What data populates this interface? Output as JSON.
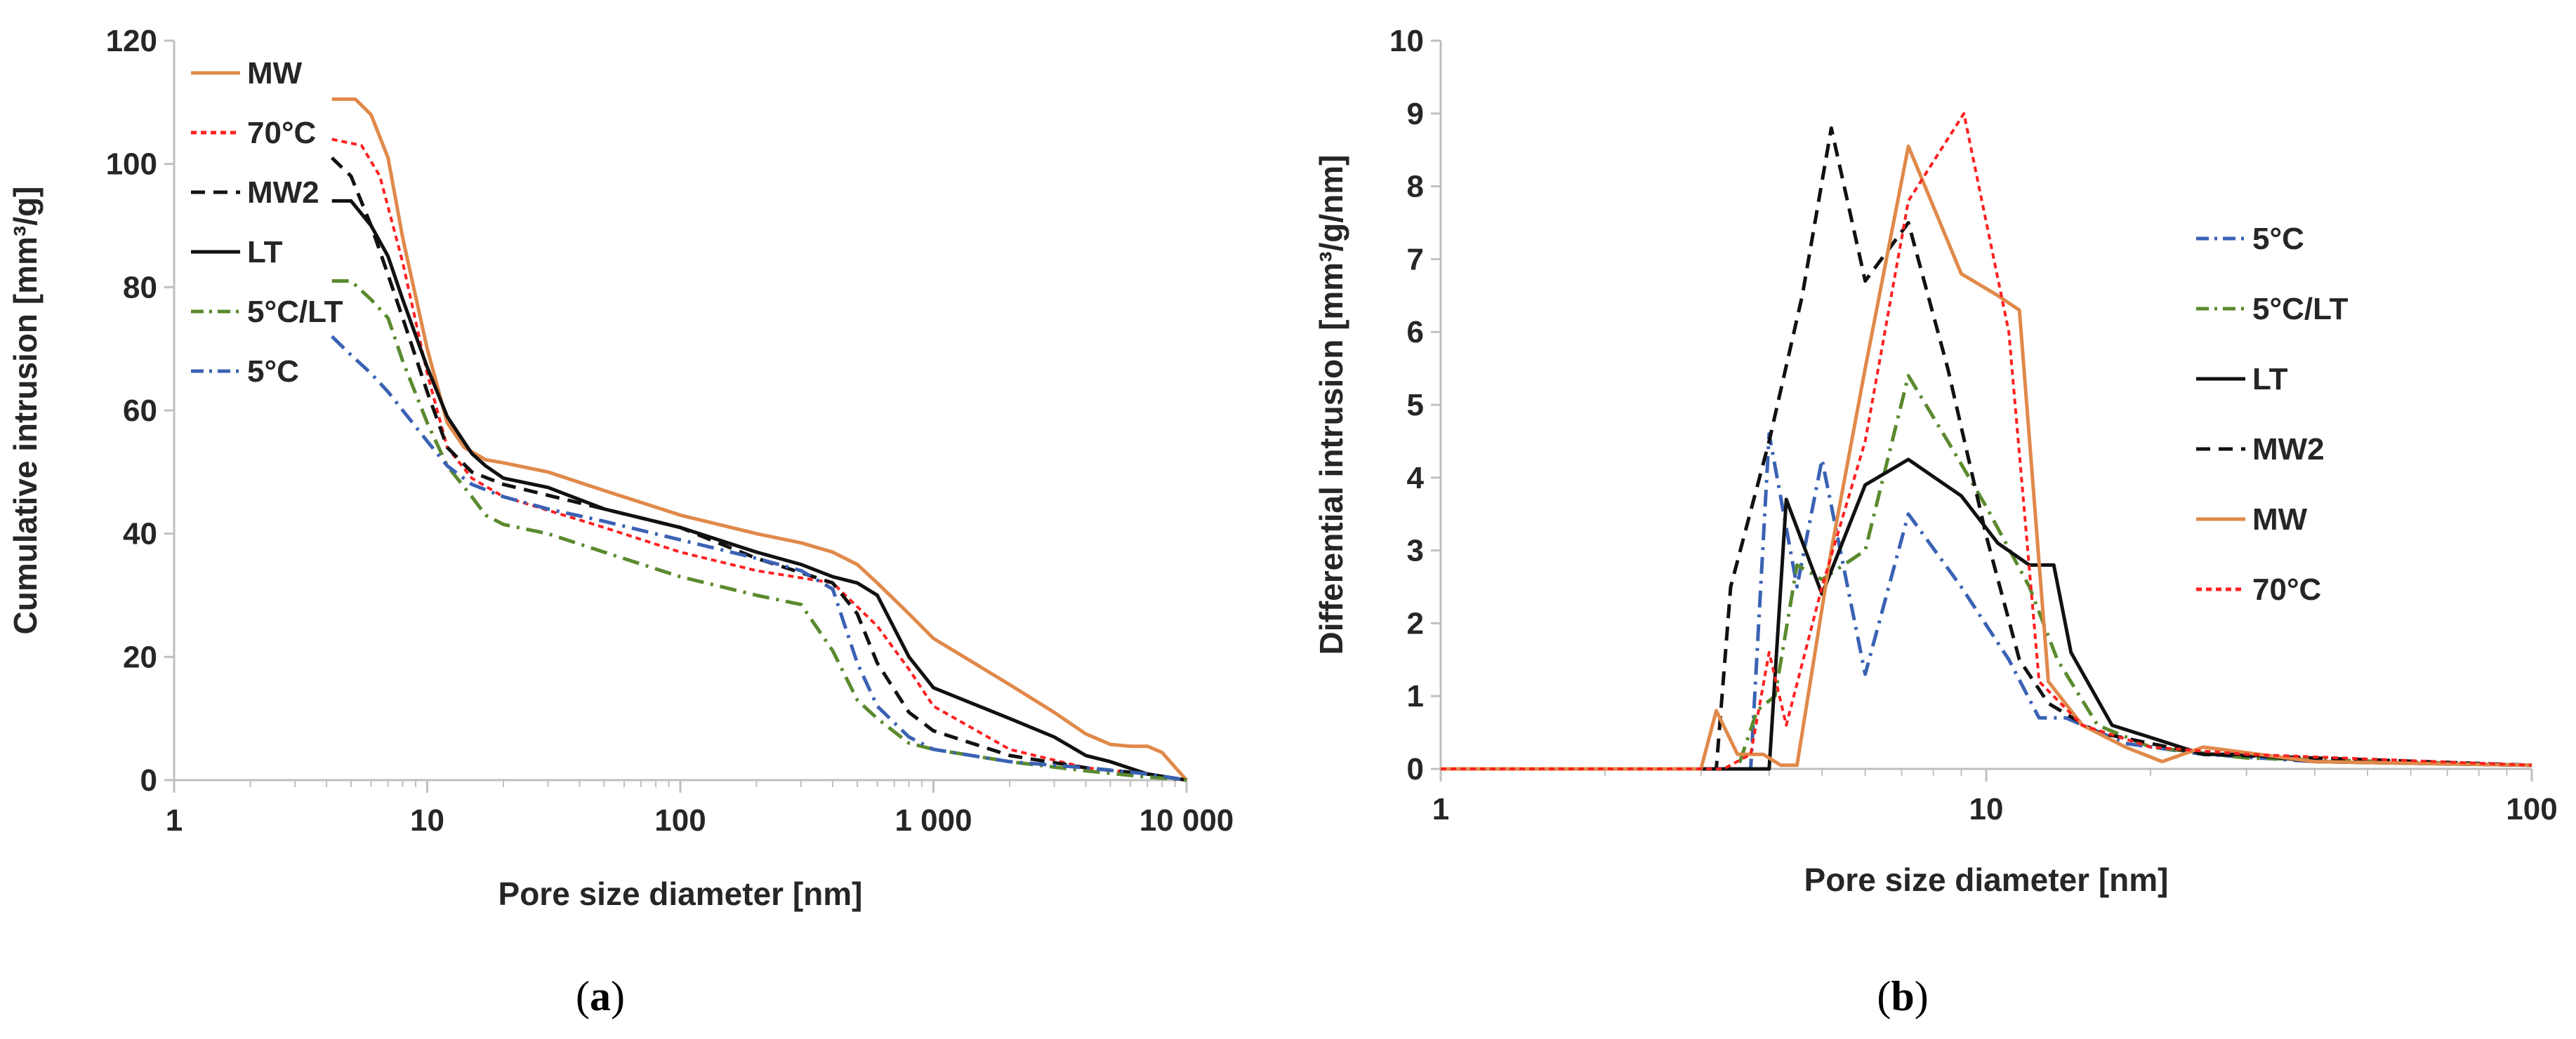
{
  "chart_data": [
    {
      "type": "line",
      "caption_open": "(",
      "caption_letter": "a",
      "caption_close": ")",
      "xlabel": "Pore size diameter [nm]",
      "ylabel": "Cumulative intrusion [mm³/g]",
      "xscale": "log",
      "xlim": [
        1,
        10000
      ],
      "ylim": [
        0,
        120
      ],
      "xticks": [
        1,
        10,
        100,
        1000,
        10000
      ],
      "xtick_labels": [
        "1",
        "10",
        "100",
        "1 000",
        "10 000"
      ],
      "yticks": [
        0,
        20,
        40,
        60,
        80,
        100,
        120
      ],
      "ytick_labels": [
        "0",
        "20",
        "40",
        "60",
        "80",
        "100",
        "120"
      ],
      "grid": false,
      "legend_position": "top-left",
      "series": [
        {
          "name": "MW",
          "color": "#e0894a",
          "dash": "",
          "x": [
            4.2,
            5.2,
            6,
            7,
            8,
            10,
            12,
            14,
            17,
            20,
            30,
            50,
            100,
            200,
            300,
            400,
            500,
            600,
            800,
            1000,
            2000,
            3000,
            4000,
            5000,
            6000,
            7000,
            8000,
            10000
          ],
          "y": [
            110.5,
            110.5,
            108,
            101,
            88,
            70,
            58,
            54,
            52,
            51.5,
            50,
            47,
            43,
            40,
            38.5,
            37,
            35,
            32,
            27,
            23,
            15.5,
            11,
            7.5,
            5.8,
            5.5,
            5.5,
            4.5,
            0
          ]
        },
        {
          "name": "70°C",
          "color": "#ff2020",
          "dash": "8,6",
          "x": [
            4.2,
            5.5,
            6.5,
            8,
            10,
            12,
            15,
            20,
            50,
            100,
            200,
            400,
            600,
            800,
            1000,
            2000,
            4000,
            7000,
            10000
          ],
          "y": [
            104,
            103,
            98,
            84,
            66,
            54,
            49,
            46,
            41,
            37,
            34,
            32,
            25,
            18,
            12,
            5,
            2,
            1,
            0
          ]
        },
        {
          "name": "MW2",
          "color": "#111111",
          "dash": "20,12",
          "x": [
            4.2,
            5,
            6,
            7,
            8,
            10,
            12,
            15,
            20,
            50,
            100,
            200,
            400,
            500,
            600,
            800,
            1000,
            2000,
            4000,
            7000,
            10000
          ],
          "y": [
            101,
            98,
            90,
            82,
            75,
            63,
            54,
            50,
            48,
            44,
            41,
            36,
            32,
            27,
            19,
            11,
            8,
            4,
            2,
            1,
            0
          ]
        },
        {
          "name": "LT",
          "color": "#111111",
          "dash": "",
          "x": [
            4.2,
            5,
            6,
            7,
            8,
            10,
            12,
            15,
            17,
            20,
            30,
            50,
            100,
            200,
            300,
            400,
            500,
            600,
            800,
            1000,
            2000,
            3000,
            4000,
            5000,
            7000,
            10000
          ],
          "y": [
            94,
            94,
            90,
            85,
            78,
            67,
            59,
            53,
            51,
            49,
            47.5,
            44,
            41,
            37,
            35,
            33,
            32,
            30,
            20,
            15,
            10,
            7,
            4,
            3,
            1,
            0
          ]
        },
        {
          "name": "5°C/LT",
          "color": "#5a8a2e",
          "dash": "24,10,4,10",
          "x": [
            4.2,
            5,
            6,
            7,
            8,
            10,
            12,
            15,
            17,
            20,
            30,
            50,
            100,
            200,
            300,
            400,
            500,
            600,
            800,
            1000,
            2000,
            4000,
            7000,
            10000
          ],
          "y": [
            81,
            81,
            78,
            75,
            68,
            58,
            51,
            46,
            43,
            41.5,
            40,
            37,
            33,
            30,
            28.5,
            21,
            13,
            10,
            6,
            5,
            3,
            1.5,
            0.5,
            0
          ]
        },
        {
          "name": "5°C",
          "color": "#3a62b4",
          "dash": "24,10,4,10",
          "x": [
            4.2,
            5,
            6,
            7,
            8,
            10,
            12,
            15,
            20,
            30,
            50,
            100,
            200,
            300,
            400,
            500,
            600,
            800,
            1000,
            2000,
            4000,
            7000,
            10000
          ],
          "y": [
            72,
            69,
            66,
            63,
            60,
            55,
            51,
            48,
            46,
            44,
            42,
            39,
            36,
            34,
            31,
            19,
            12,
            7,
            5,
            3,
            2,
            1,
            0
          ]
        }
      ]
    },
    {
      "type": "line",
      "caption_open": "(",
      "caption_letter": "b",
      "caption_close": ")",
      "xlabel": "Pore size diameter [nm]",
      "ylabel": "Differential intrusion [mm³/g/nm]",
      "xscale": "log",
      "xlim": [
        1,
        100
      ],
      "ylim": [
        0,
        10
      ],
      "xticks": [
        1,
        10,
        100
      ],
      "xtick_labels": [
        "1",
        "10",
        "100"
      ],
      "yticks": [
        0,
        1,
        2,
        3,
        4,
        5,
        6,
        7,
        8,
        9,
        10
      ],
      "ytick_labels": [
        "0",
        "1",
        "2",
        "3",
        "4",
        "5",
        "6",
        "7",
        "8",
        "9",
        "10"
      ],
      "grid": false,
      "legend_position": "right",
      "series": [
        {
          "name": "5°C",
          "color": "#3a62b4",
          "dash": "24,10,4,10",
          "x": [
            1,
            3.7,
            4,
            4.5,
            5,
            6,
            7.2,
            9,
            11,
            12.5,
            14,
            18,
            25,
            40,
            100
          ],
          "y": [
            0,
            0,
            4.6,
            2.5,
            4.25,
            1.3,
            3.5,
            2.5,
            1.5,
            0.7,
            0.7,
            0.35,
            0.2,
            0.1,
            0.05
          ]
        },
        {
          "name": "5°C/LT",
          "color": "#5a8a2e",
          "dash": "24,10,4,10",
          "x": [
            1,
            3.5,
            3.8,
            4.1,
            4.5,
            5,
            6,
            7.2,
            8.5,
            10,
            12,
            13.5,
            16,
            20,
            30,
            100
          ],
          "y": [
            0,
            0,
            0.8,
            1.0,
            2.8,
            2.6,
            3.0,
            5.4,
            4.5,
            3.6,
            2.5,
            1.5,
            0.6,
            0.3,
            0.15,
            0.05
          ]
        },
        {
          "name": "LT",
          "color": "#111111",
          "dash": "",
          "x": [
            1,
            4.0,
            4.3,
            5,
            6,
            7.2,
            9,
            10.5,
            12,
            13.3,
            14.3,
            17,
            25,
            30,
            40,
            100
          ],
          "y": [
            0,
            0,
            3.7,
            2.4,
            3.9,
            4.25,
            3.75,
            3.1,
            2.8,
            2.8,
            1.6,
            0.6,
            0.2,
            0.2,
            0.1,
            0.05
          ]
        },
        {
          "name": "MW2",
          "color": "#111111",
          "dash": "20,12",
          "x": [
            1,
            3.2,
            3.4,
            4,
            4.6,
            5.2,
            6,
            7.2,
            8.5,
            10,
            11.5,
            13,
            16,
            25,
            100
          ],
          "y": [
            0,
            0,
            2.5,
            4.5,
            6.5,
            8.8,
            6.7,
            7.5,
            5.5,
            3.2,
            1.5,
            0.9,
            0.5,
            0.2,
            0.05
          ]
        },
        {
          "name": "MW",
          "color": "#e0894a",
          "dash": "",
          "x": [
            1,
            3.0,
            3.2,
            3.5,
            3.9,
            4.2,
            4.5,
            5.2,
            6,
            7.2,
            9,
            10.5,
            11.5,
            13,
            15,
            18,
            21,
            25,
            40,
            100
          ],
          "y": [
            0,
            0,
            0.8,
            0.2,
            0.2,
            0.05,
            0.05,
            3,
            5.5,
            8.55,
            6.8,
            6.5,
            6.3,
            1.2,
            0.6,
            0.3,
            0.1,
            0.3,
            0.1,
            0.05
          ]
        },
        {
          "name": "70°C",
          "color": "#ff2020",
          "dash": "8,6",
          "x": [
            1,
            3.3,
            3.7,
            4,
            4.3,
            5,
            6,
            7.2,
            9.1,
            11,
            12.5,
            15,
            20,
            30,
            100
          ],
          "y": [
            0,
            0,
            0.2,
            1.6,
            0.6,
            2.5,
            4.5,
            7.8,
            9.0,
            6.0,
            1.2,
            0.6,
            0.3,
            0.2,
            0.05
          ]
        }
      ]
    }
  ]
}
